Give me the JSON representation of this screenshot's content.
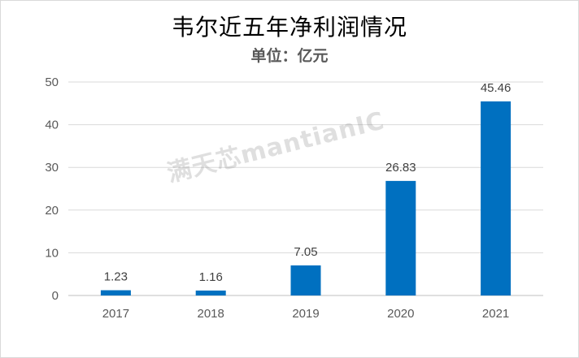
{
  "chart_data": {
    "type": "bar",
    "title": "韦尔近五年净利润情况",
    "subtitle": "单位：亿元",
    "categories": [
      "2017",
      "2018",
      "2019",
      "2020",
      "2021"
    ],
    "series": [
      {
        "values": [
          1.23,
          1.16,
          7.05,
          26.83,
          45.46
        ],
        "labels": [
          "1.23",
          "1.16",
          "7.05",
          "26.83",
          "45.46"
        ]
      }
    ],
    "ylim": [
      0,
      50
    ],
    "yticks": [
      0,
      10,
      20,
      30,
      40,
      50
    ],
    "grid": true,
    "legend": "none",
    "bar_color": "#0070C0",
    "watermark": "满天芯mantianIC"
  }
}
